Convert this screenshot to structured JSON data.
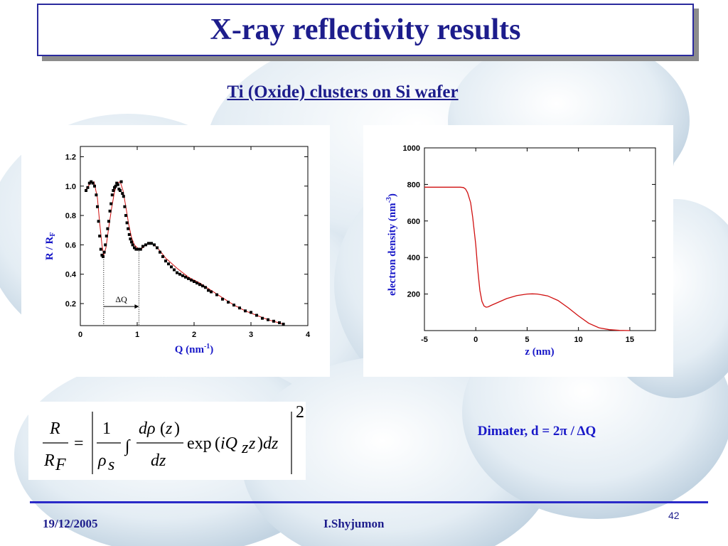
{
  "slide": {
    "title": "X-ray reflectivity results",
    "subtitle": "Ti (Oxide) clusters on Si wafer",
    "note": "Dimater, d = 2π / ΔQ",
    "footer": {
      "date": "19/12/2005",
      "author": "I.Shyjumon",
      "page": "42"
    }
  },
  "colors": {
    "title": "#1d1d8c",
    "axis_label": "#1818c8",
    "fit_line": "#d01010",
    "accent": "#2a2ac8"
  },
  "chart_data": [
    {
      "type": "scatter",
      "xlabel": "Q (nm",
      "xlabel_sup": "-1",
      "xlabel_close": ")",
      "ylabel": "R / R",
      "ylabel_sub": "F",
      "xlim": [
        0,
        4
      ],
      "ylim": [
        0.05,
        1.27
      ],
      "xticks": [
        "0",
        "1",
        "2",
        "3",
        "4"
      ],
      "yticks": [
        "0.2",
        "0.4",
        "0.6",
        "0.8",
        "1.0",
        "1.2"
      ],
      "annotation": "ΔQ",
      "annotation_range": [
        0.41,
        1.03
      ],
      "series": [
        {
          "marker": "square",
          "x": [
            0.1,
            0.13,
            0.16,
            0.19,
            0.22,
            0.25,
            0.28,
            0.3,
            0.32,
            0.34,
            0.36,
            0.38,
            0.4,
            0.42,
            0.44,
            0.46,
            0.48,
            0.5,
            0.52,
            0.54,
            0.56,
            0.58,
            0.6,
            0.62,
            0.64,
            0.66,
            0.68,
            0.7,
            0.72,
            0.74,
            0.76,
            0.78,
            0.8,
            0.82,
            0.84,
            0.86,
            0.88,
            0.9,
            0.92,
            0.95,
            0.98,
            1.02,
            1.06,
            1.1,
            1.15,
            1.2,
            1.25,
            1.3,
            1.35,
            1.4,
            1.45,
            1.5,
            1.55,
            1.6,
            1.65,
            1.7,
            1.75,
            1.8,
            1.85,
            1.9,
            1.95,
            2.0,
            2.05,
            2.1,
            2.15,
            2.2,
            2.25,
            2.3,
            2.4,
            2.5,
            2.6,
            2.7,
            2.8,
            2.9,
            3.0,
            3.1,
            3.2,
            3.3,
            3.4,
            3.5,
            3.57
          ],
          "y": [
            0.97,
            0.99,
            1.02,
            1.03,
            1.02,
            1.0,
            0.94,
            0.86,
            0.76,
            0.66,
            0.57,
            0.53,
            0.52,
            0.55,
            0.6,
            0.66,
            0.71,
            0.76,
            0.83,
            0.88,
            0.94,
            0.97,
            0.99,
            1.0,
            1.02,
            1.01,
            0.98,
            0.97,
            1.03,
            0.95,
            0.93,
            0.86,
            0.8,
            0.75,
            0.71,
            0.67,
            0.64,
            0.62,
            0.6,
            0.58,
            0.57,
            0.57,
            0.57,
            0.59,
            0.6,
            0.61,
            0.61,
            0.6,
            0.58,
            0.55,
            0.52,
            0.49,
            0.47,
            0.45,
            0.43,
            0.41,
            0.4,
            0.39,
            0.38,
            0.37,
            0.36,
            0.35,
            0.34,
            0.33,
            0.32,
            0.31,
            0.29,
            0.28,
            0.26,
            0.23,
            0.21,
            0.19,
            0.17,
            0.15,
            0.14,
            0.12,
            0.1,
            0.09,
            0.08,
            0.07,
            0.06
          ]
        },
        {
          "type": "line",
          "x": [
            0.1,
            0.18,
            0.24,
            0.3,
            0.34,
            0.38,
            0.41,
            0.45,
            0.5,
            0.55,
            0.6,
            0.65,
            0.7,
            0.75,
            0.8,
            0.85,
            0.9,
            0.95,
            1.0,
            1.05,
            1.1,
            1.15,
            1.2,
            1.25,
            1.3,
            1.4,
            1.5,
            1.7,
            1.9,
            2.1,
            2.3,
            2.5,
            2.7,
            2.9,
            3.1,
            3.3,
            3.57
          ],
          "y": [
            0.98,
            1.02,
            1.03,
            0.92,
            0.75,
            0.6,
            0.53,
            0.58,
            0.72,
            0.85,
            0.96,
            1.02,
            1.03,
            0.97,
            0.86,
            0.74,
            0.65,
            0.6,
            0.58,
            0.57,
            0.58,
            0.6,
            0.61,
            0.61,
            0.6,
            0.56,
            0.51,
            0.44,
            0.38,
            0.34,
            0.29,
            0.24,
            0.19,
            0.15,
            0.12,
            0.09,
            0.06
          ]
        }
      ]
    },
    {
      "type": "line",
      "xlabel": "z (nm)",
      "ylabel": "electron density (nm",
      "ylabel_sup": "-3",
      "ylabel_close": ")",
      "xlim": [
        -5,
        17.5
      ],
      "ylim": [
        0,
        1000
      ],
      "xticks": [
        "-5",
        "0",
        "5",
        "10",
        "15"
      ],
      "yticks": [
        "200",
        "400",
        "600",
        "800",
        "1000"
      ],
      "series": [
        {
          "x": [
            -5,
            -3,
            -1.5,
            -1.2,
            -1.0,
            -0.8,
            -0.5,
            -0.3,
            0.0,
            0.2,
            0.4,
            0.6,
            0.8,
            1.0,
            1.2,
            1.5,
            2.0,
            3.0,
            4.0,
            5.0,
            5.5,
            6.0,
            7.0,
            8.0,
            9.0,
            10.0,
            11.0,
            12.0,
            13.0,
            14.0,
            15.0
          ],
          "y": [
            785,
            785,
            785,
            783,
            775,
            755,
            700,
            620,
            470,
            330,
            220,
            160,
            135,
            128,
            130,
            138,
            150,
            175,
            192,
            200,
            201,
            200,
            190,
            165,
            125,
            80,
            40,
            15,
            5,
            1,
            0
          ]
        }
      ]
    }
  ]
}
